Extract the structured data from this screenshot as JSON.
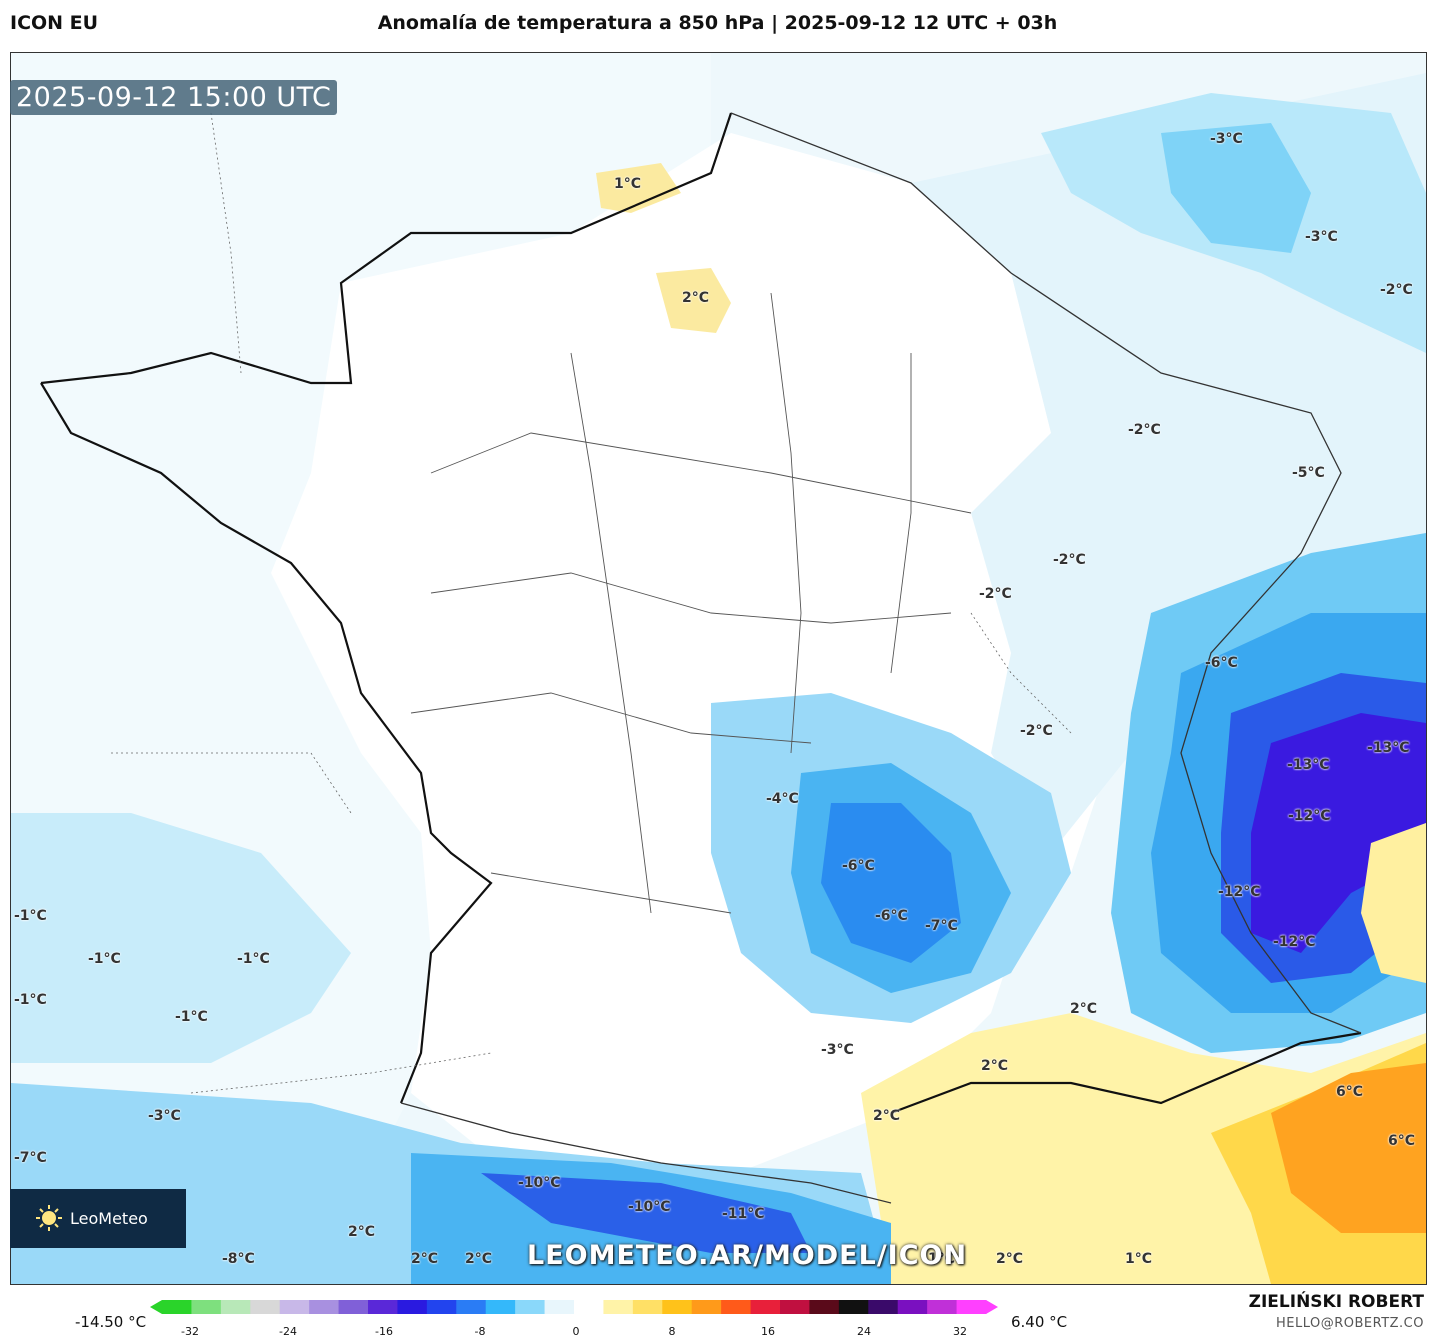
{
  "header": {
    "model": "ICON EU",
    "title": "Anomalía de temperatura a 850 hPa | 2025-09-12 12 UTC + 03h"
  },
  "map": {
    "timestamp": "2025-09-12 15:00 UTC",
    "watermark": "LEOMETEO.AR/MODEL/ICON",
    "logo_text": "LeoMeteo",
    "labels": [
      {
        "text": "1°C"
      },
      {
        "text": "2°C"
      },
      {
        "text": "-3°C"
      },
      {
        "text": "-3°C"
      },
      {
        "text": "-2°C"
      },
      {
        "text": "-2°C"
      },
      {
        "text": "-5°C"
      },
      {
        "text": "-2°C"
      },
      {
        "text": "-2°C"
      },
      {
        "text": "-6°C"
      },
      {
        "text": "-2°C"
      },
      {
        "text": "-13°C"
      },
      {
        "text": "-13°C"
      },
      {
        "text": "-12°C"
      },
      {
        "text": "-4°C"
      },
      {
        "text": "-6°C"
      },
      {
        "text": "-6°C"
      },
      {
        "text": "-7°C"
      },
      {
        "text": "-12°C"
      },
      {
        "text": "-12°C"
      },
      {
        "text": "-1°C"
      },
      {
        "text": "-1°C"
      },
      {
        "text": "-1°C"
      },
      {
        "text": "-1°C"
      },
      {
        "text": "-1°C"
      },
      {
        "text": "2°C"
      },
      {
        "text": "2°C"
      },
      {
        "text": "-3°C"
      },
      {
        "text": "2°C"
      },
      {
        "text": "6°C"
      },
      {
        "text": "6°C"
      },
      {
        "text": "-3°C"
      },
      {
        "text": "-7°C"
      },
      {
        "text": "-10°C"
      },
      {
        "text": "-10°C"
      },
      {
        "text": "-11°C"
      },
      {
        "text": "2°C"
      },
      {
        "text": "-8°C"
      },
      {
        "text": "2°C"
      },
      {
        "text": "2°C"
      },
      {
        "text": "1°C"
      },
      {
        "text": "2°C"
      },
      {
        "text": "1°C"
      }
    ]
  },
  "legend": {
    "min_label": "-14.50 °C",
    "max_label": "6.40 °C",
    "ticks": [
      "-32",
      "-24",
      "-16",
      "-8",
      "0",
      "8",
      "16",
      "24",
      "32"
    ],
    "colors": [
      "#2ad42a",
      "#7ee07e",
      "#b8e8b8",
      "#d8d8d8",
      "#c8b8e8",
      "#a890e0",
      "#8060d8",
      "#5a28d8",
      "#2a1ae0",
      "#2244ee",
      "#2a7cf5",
      "#34b8fa",
      "#8ad8fa",
      "#e8f6fc",
      "#ffffff",
      "#fff3a8",
      "#ffe066",
      "#ffc21a",
      "#ff9a1a",
      "#ff5a1a",
      "#e8203a",
      "#c01040",
      "#5a0a1a",
      "#111111",
      "#3a0a6a",
      "#7a10c0",
      "#c030d8",
      "#ff40ff"
    ]
  },
  "footer": {
    "author": "ZIELIŃSKI ROBERT",
    "email": "HELLO@ROBERTZ.CO"
  }
}
